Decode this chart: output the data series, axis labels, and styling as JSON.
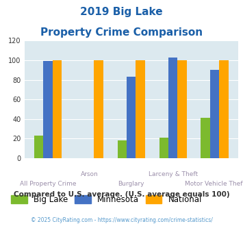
{
  "title_line1": "2019 Big Lake",
  "title_line2": "Property Crime Comparison",
  "categories": [
    "All Property Crime",
    "Arson",
    "Burglary",
    "Larceny & Theft",
    "Motor Vehicle Theft"
  ],
  "big_lake": [
    23,
    0,
    18,
    21,
    41
  ],
  "minnesota": [
    99,
    0,
    83,
    103,
    90
  ],
  "national": [
    100,
    100,
    100,
    100,
    100
  ],
  "color_biglake": "#7cba2e",
  "color_minnesota": "#4472c4",
  "color_national": "#ffa500",
  "ylim": [
    0,
    120
  ],
  "yticks": [
    0,
    20,
    40,
    60,
    80,
    100,
    120
  ],
  "background_color": "#dce9ef",
  "title_color": "#1a5fa8",
  "xlabel_color": "#9b8faa",
  "footer_note": "Compared to U.S. average. (U.S. average equals 100)",
  "footer_note_color": "#333333",
  "copyright": "© 2025 CityRating.com - https://www.cityrating.com/crime-statistics/",
  "copyright_color": "#5599cc",
  "legend_labels": [
    "Big Lake",
    "Minnesota",
    "National"
  ],
  "bar_width": 0.22,
  "grid_color": "#ffffff"
}
